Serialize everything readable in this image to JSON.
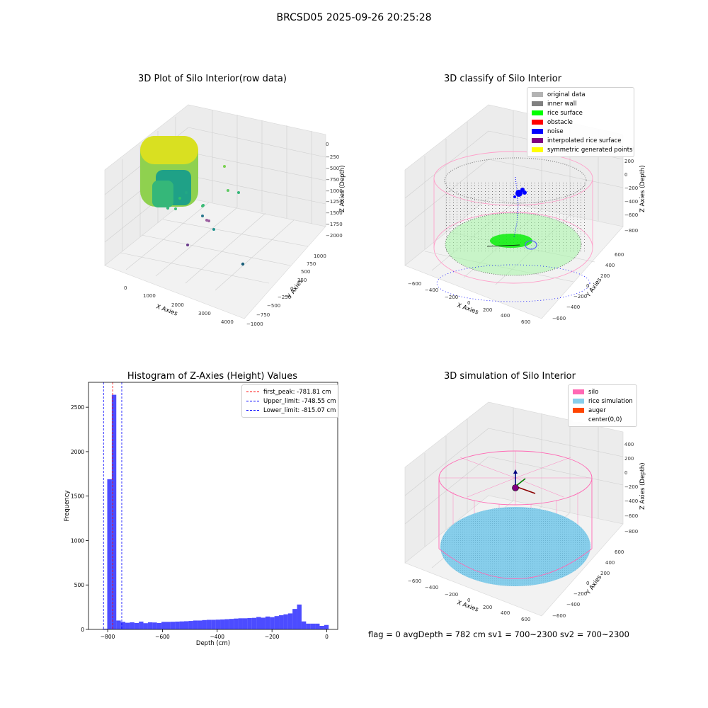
{
  "figure": {
    "title": "BRCSD05 2025-09-26 20:25:28",
    "footer": "flag = 0     avgDepth = 782 cm  sv1 = 700~2300  sv2 = 700~2300"
  },
  "panel1": {
    "title": "3D Plot of Silo Interior(row data)",
    "xlabel": "X Axies",
    "ylabel": "Y Axies",
    "zlabel": "Z Axies (Depth)",
    "xticks": [
      "0",
      "1000",
      "2000",
      "3000",
      "4000"
    ],
    "yticks": [
      "−1000",
      "−750",
      "−500",
      "−250",
      "0",
      "250",
      "500",
      "750",
      "1000"
    ],
    "zticks": [
      "−2000",
      "−1750",
      "−1500",
      "−1250",
      "−1000",
      "−750",
      "−500",
      "−250",
      "0"
    ]
  },
  "panel2": {
    "title": "3D classify of Silo Interior",
    "xlabel": "X Axies",
    "ylabel": "Y Axies",
    "zlabel": "Z Axies (Depth)",
    "xticks": [
      "−600",
      "−400",
      "−200",
      "0",
      "200",
      "400",
      "600"
    ],
    "yticks": [
      "−600",
      "−400",
      "−200",
      "0",
      "200",
      "400",
      "600"
    ],
    "zticks": [
      "−800",
      "−600",
      "−400",
      "−200",
      "0",
      "200",
      "400"
    ],
    "legend": [
      {
        "label": "original data",
        "color": "#b3b3b3"
      },
      {
        "label": "inner wall",
        "color": "#808080"
      },
      {
        "label": "rice surface",
        "color": "#00ff00"
      },
      {
        "label": "obstacle",
        "color": "#ff0000"
      },
      {
        "label": "noise",
        "color": "#0000ff"
      },
      {
        "label": "interpolated rice surface",
        "color": "#800080"
      },
      {
        "label": "symmetric generated points",
        "color": "#ffff00"
      }
    ]
  },
  "panel4": {
    "title": "3D simulation of Silo Interior",
    "xlabel": "X Axies",
    "ylabel": "Y Axies",
    "zlabel": "Z Axies (Depth)",
    "xticks": [
      "−600",
      "−400",
      "−200",
      "0",
      "200",
      "400",
      "600"
    ],
    "yticks": [
      "−600",
      "−400",
      "−200",
      "0",
      "200",
      "400",
      "600"
    ],
    "zticks": [
      "−800",
      "−600",
      "−400",
      "−200",
      "0",
      "200",
      "400"
    ],
    "legend": [
      {
        "label": "silo",
        "color": "#ff69b4"
      },
      {
        "label": "rice simulation",
        "color": "#87ceeb"
      },
      {
        "label": "auger",
        "color": "#ff4500"
      },
      {
        "label": "center(0,0)",
        "color": "#ffffff"
      }
    ]
  },
  "chart_data": {
    "type": "bar",
    "title": "Histogram of Z-Axies (Height) Values",
    "xlabel": "Depth (cm)",
    "ylabel": "Frequency",
    "xlim": [
      -870,
      40
    ],
    "ylim": [
      0,
      2780
    ],
    "xticks": [
      -800,
      -600,
      -400,
      -200,
      0
    ],
    "xtick_labels": [
      "−800",
      "−600",
      "−400",
      "−200",
      "0"
    ],
    "yticks": [
      0,
      500,
      1000,
      1500,
      2000,
      2500
    ],
    "yticks_labels": [
      "0",
      "500",
      "1000",
      "1500",
      "2000",
      "2500"
    ],
    "bar_color": "#0000ff",
    "bin_width": 16.5,
    "bins": [
      {
        "x": -818,
        "value": 8
      },
      {
        "x": -801.5,
        "value": 1690
      },
      {
        "x": -785,
        "value": 2640
      },
      {
        "x": -768.5,
        "value": 100
      },
      {
        "x": -752,
        "value": 85
      },
      {
        "x": -735.5,
        "value": 75
      },
      {
        "x": -719,
        "value": 80
      },
      {
        "x": -702.5,
        "value": 72
      },
      {
        "x": -686,
        "value": 88
      },
      {
        "x": -669.5,
        "value": 70
      },
      {
        "x": -653,
        "value": 80
      },
      {
        "x": -636.5,
        "value": 78
      },
      {
        "x": -620,
        "value": 72
      },
      {
        "x": -603.5,
        "value": 85
      },
      {
        "x": -587,
        "value": 85
      },
      {
        "x": -570.5,
        "value": 86
      },
      {
        "x": -554,
        "value": 88
      },
      {
        "x": -537.5,
        "value": 90
      },
      {
        "x": -521,
        "value": 92
      },
      {
        "x": -504.5,
        "value": 95
      },
      {
        "x": -488,
        "value": 100
      },
      {
        "x": -471.5,
        "value": 100
      },
      {
        "x": -455,
        "value": 105
      },
      {
        "x": -438.5,
        "value": 108
      },
      {
        "x": -422,
        "value": 108
      },
      {
        "x": -405.5,
        "value": 110
      },
      {
        "x": -389,
        "value": 112
      },
      {
        "x": -372.5,
        "value": 115
      },
      {
        "x": -356,
        "value": 118
      },
      {
        "x": -339.5,
        "value": 122
      },
      {
        "x": -323,
        "value": 125
      },
      {
        "x": -306.5,
        "value": 125
      },
      {
        "x": -290,
        "value": 128
      },
      {
        "x": -273.5,
        "value": 130
      },
      {
        "x": -257,
        "value": 140
      },
      {
        "x": -240.5,
        "value": 132
      },
      {
        "x": -224,
        "value": 145
      },
      {
        "x": -207.5,
        "value": 138
      },
      {
        "x": -191,
        "value": 150
      },
      {
        "x": -174.5,
        "value": 160
      },
      {
        "x": -158,
        "value": 170
      },
      {
        "x": -141.5,
        "value": 180
      },
      {
        "x": -125,
        "value": 230
      },
      {
        "x": -108.5,
        "value": 280
      },
      {
        "x": -92,
        "value": 90
      },
      {
        "x": -75.5,
        "value": 65
      },
      {
        "x": -59,
        "value": 65
      },
      {
        "x": -42.5,
        "value": 65
      },
      {
        "x": -26,
        "value": 40
      },
      {
        "x": -9.5,
        "value": 50
      }
    ],
    "vlines": [
      {
        "x": -781.81,
        "color": "#ff0000"
      },
      {
        "x": -748.55,
        "color": "#0000ff"
      },
      {
        "x": -815.07,
        "color": "#0000ff"
      }
    ],
    "legend": [
      {
        "label": "first_peak: -781.81 cm",
        "color": "#ff0000"
      },
      {
        "label": "Upper_limit: -748.55 cm",
        "color": "#0000ff"
      },
      {
        "label": "Lower_limit: -815.07 cm",
        "color": "#0000ff"
      }
    ]
  }
}
